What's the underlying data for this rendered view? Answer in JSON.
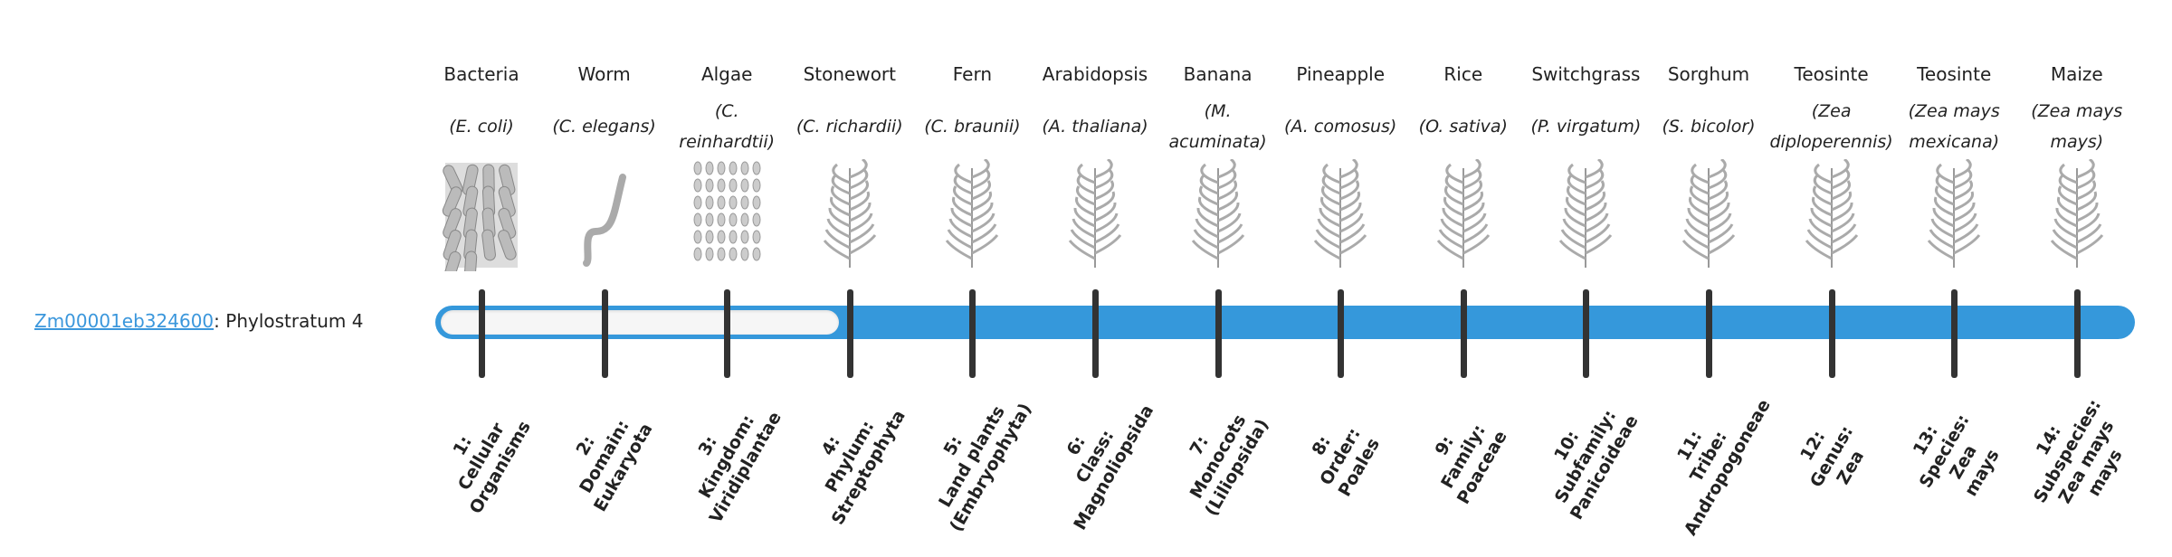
{
  "gene": {
    "id": "Zm00001eb324600",
    "suffix": ": Phylostratum 4"
  },
  "phylostratum": 4,
  "colors": {
    "bar": "#3598db",
    "empty": "#f6f6f6",
    "tick": "#333333",
    "link": "#3b97dc"
  },
  "organisms": [
    {
      "common": "Bacteria",
      "species": "(E. coli)",
      "icon": "bacteria-icon",
      "rank": [
        "1:",
        "Cellular",
        "Organisms"
      ]
    },
    {
      "common": "Worm",
      "species": "(C. elegans)",
      "icon": "worm-icon",
      "rank": [
        "2:",
        "Domain:",
        "Eukaryota"
      ]
    },
    {
      "common": "Algae",
      "species": "(C. reinhardtii)",
      "icon": "algae-icon",
      "rank": [
        "3:",
        "Kingdom:",
        "Viridiplantae"
      ]
    },
    {
      "common": "Stonewort",
      "species": "(C. richardii)",
      "icon": "stonewort-icon",
      "rank": [
        "4:",
        "Phylum:",
        "Streptophyta"
      ]
    },
    {
      "common": "Fern",
      "species": "(C. braunii)",
      "icon": "fern-icon",
      "rank": [
        "5:",
        "Land plants",
        "(Embryophyta)"
      ]
    },
    {
      "common": "Arabidopsis",
      "species": "(A. thaliana)",
      "icon": "arabidopsis-icon",
      "rank": [
        "6:",
        "Class:",
        "Magnoliopsida"
      ]
    },
    {
      "common": "Banana",
      "species": "(M. acuminata)",
      "icon": "banana-icon",
      "rank": [
        "7:",
        "Monocots",
        "(Liliopsida)"
      ]
    },
    {
      "common": "Pineapple",
      "species": "(A. comosus)",
      "icon": "pineapple-icon",
      "rank": [
        "8:",
        "Order:",
        "Poales"
      ]
    },
    {
      "common": "Rice",
      "species": "(O. sativa)",
      "icon": "rice-icon",
      "rank": [
        "9:",
        "Family:",
        "Poaceae"
      ]
    },
    {
      "common": "Switchgrass",
      "species": "(P. virgatum)",
      "icon": "switchgrass-icon",
      "rank": [
        "10:",
        "Subfamily:",
        "Panicoideae"
      ]
    },
    {
      "common": "Sorghum",
      "species": "(S. bicolor)",
      "icon": "sorghum-icon",
      "rank": [
        "11:",
        "Tribe:",
        "Andropogoneae"
      ]
    },
    {
      "common": "Teosinte",
      "species": "(Zea diploperennis)",
      "icon": "teosinte-icon",
      "rank": [
        "12:",
        "Genus:",
        "Zea"
      ]
    },
    {
      "common": "Teosinte",
      "species": "(Zea mays mexicana)",
      "icon": "teosinte-mexicana-icon",
      "rank": [
        "13:",
        "Species:",
        "Zea",
        "mays"
      ]
    },
    {
      "common": "Maize",
      "species": "(Zea mays mays)",
      "icon": "maize-icon",
      "rank": [
        "14:",
        "Subspecies:",
        "Zea mays",
        "mays"
      ]
    }
  ]
}
